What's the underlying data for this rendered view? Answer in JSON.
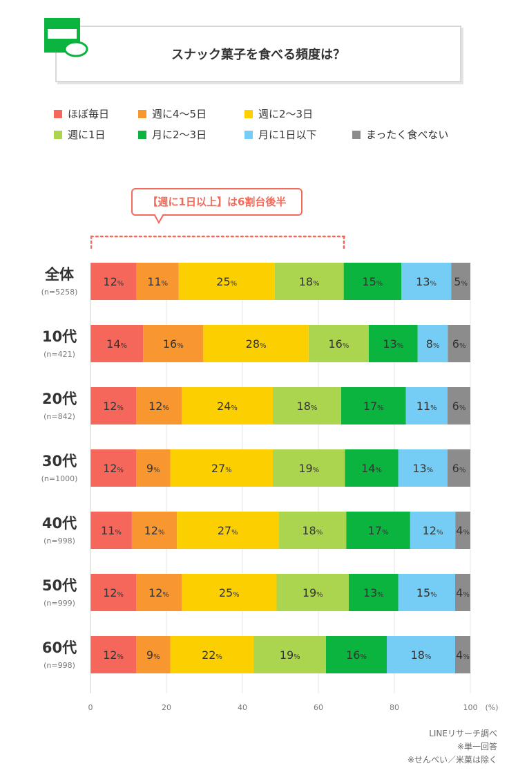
{
  "title": "スナック菓子を食べる頻度は？",
  "callout": "【週に1日以上】は6割台後半",
  "chart_data": {
    "type": "bar",
    "orientation": "horizontal-stacked-100",
    "legend": [
      {
        "name": "ほぼ毎日",
        "color": "#f4675a"
      },
      {
        "name": "週に4〜5日",
        "color": "#f89630"
      },
      {
        "name": "週に2〜3日",
        "color": "#fcd000"
      },
      {
        "name": "週に1日",
        "color": "#abd54e"
      },
      {
        "name": "月に2〜3日",
        "color": "#0bb33f"
      },
      {
        "name": "月に1日以下",
        "color": "#75cdf5"
      },
      {
        "name": "まったく食べない",
        "color": "#8c8c8c"
      }
    ],
    "categories": [
      {
        "label": "全体",
        "n": "(n=5258)",
        "values": [
          12,
          11,
          25,
          18,
          15,
          13,
          5
        ]
      },
      {
        "label": "10代",
        "n": "(n=421)",
        "values": [
          14,
          16,
          28,
          16,
          13,
          8,
          6
        ]
      },
      {
        "label": "20代",
        "n": "(n=842)",
        "values": [
          12,
          12,
          24,
          18,
          17,
          11,
          6
        ]
      },
      {
        "label": "30代",
        "n": "(n=1000)",
        "values": [
          12,
          9,
          27,
          19,
          14,
          13,
          6
        ]
      },
      {
        "label": "40代",
        "n": "(n=998)",
        "values": [
          11,
          12,
          27,
          18,
          17,
          12,
          4
        ]
      },
      {
        "label": "50代",
        "n": "(n=999)",
        "values": [
          12,
          12,
          25,
          19,
          13,
          15,
          4
        ]
      },
      {
        "label": "60代",
        "n": "(n=998)",
        "values": [
          12,
          9,
          22,
          19,
          16,
          18,
          4
        ]
      }
    ],
    "xlim": [
      0,
      100
    ],
    "xticks": [
      0,
      20,
      40,
      60,
      80,
      100
    ],
    "xunit": "(%)",
    "value_suffix": "%"
  },
  "notes": [
    "LINEリサーチ調べ",
    "※単一回答",
    "※せんべい／米菓は除く"
  ]
}
